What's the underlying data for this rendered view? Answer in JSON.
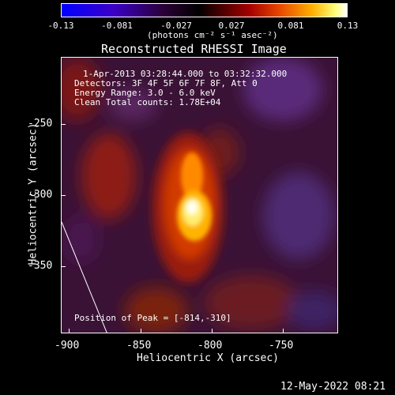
{
  "colorbar": {
    "tick_labels": [
      "-0.13",
      "-0.081",
      "-0.027",
      "0.027",
      "0.081",
      "0.13"
    ],
    "units": "(photons cm⁻² s⁻¹ asec⁻²)"
  },
  "title": "Reconstructed RHESSI Image",
  "info": {
    "time_range": "1-Apr-2013 03:28:44.000 to 03:32:32.000",
    "detectors": "Detectors: 3F 4F 5F 6F 7F 8F, Att 0",
    "energy": "Energy Range: 3.0 - 6.0 keV",
    "clean": "Clean    Total counts: 1.78E+04",
    "peak": "Position of Peak = [-814,-310]"
  },
  "axes": {
    "xlabel": "Heliocentric X (arcsec)",
    "ylabel": "Heliocentric Y (arcsec)",
    "xticks": [
      "-900",
      "-850",
      "-800",
      "-750"
    ],
    "yticks": [
      "-250",
      "-300",
      "-350"
    ]
  },
  "footer": {
    "timestamp": "12-May-2022 08:21"
  }
}
